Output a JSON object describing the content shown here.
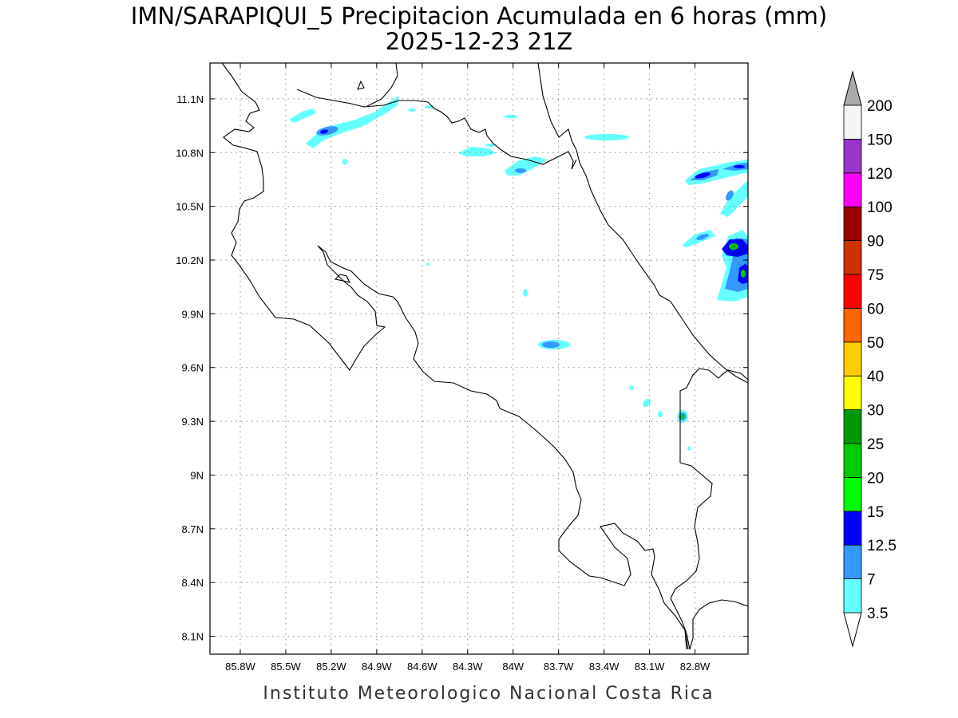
{
  "title": {
    "line1": "IMN/SARAPIQUI_5 Precipitacion Acumulada en 6 horas (mm)",
    "line2": "2025-12-23 21Z"
  },
  "footer": "Instituto Meteorologico Nacional Costa Rica",
  "axes": {
    "x_labels": [
      "85.8W",
      "85.5W",
      "85.2W",
      "84.9W",
      "84.6W",
      "84.3W",
      "84W",
      "83.7W",
      "83.4W",
      "83.1W",
      "82.8W"
    ],
    "y_labels": [
      "11.1N",
      "10.8N",
      "10.5N",
      "10.2N",
      "9.9N",
      "9.6N",
      "9.3N",
      "9N",
      "8.7N",
      "8.4N",
      "8.1N"
    ],
    "lon_ticks": [
      -85.8,
      -85.5,
      -85.2,
      -84.9,
      -84.6,
      -84.3,
      -84.0,
      -83.7,
      -83.4,
      -83.1,
      -82.8
    ],
    "lat_ticks": [
      11.1,
      10.8,
      10.5,
      10.2,
      9.9,
      9.6,
      9.3,
      9.0,
      8.7,
      8.4,
      8.1
    ],
    "lon_range": [
      -86.0,
      -82.45
    ],
    "lat_range": [
      8.0,
      11.3
    ],
    "grid": true
  },
  "colorbar": {
    "labels": [
      "3.5",
      "7",
      "12.5",
      "15",
      "20",
      "25",
      "30",
      "40",
      "50",
      "60",
      "75",
      "90",
      "100",
      "120",
      "150",
      "200"
    ],
    "colors": [
      "#66ffff",
      "#3399ff",
      "#0000ff",
      "#00ff00",
      "#00cc00",
      "#009900",
      "#ffff00",
      "#ffcc00",
      "#ff6600",
      "#ff0000",
      "#cc3300",
      "#990000",
      "#ff00ff",
      "#9933cc",
      "#f5f5f5",
      "#aaaaaa"
    ]
  },
  "chart_data": {
    "type": "heatmap",
    "variable": "Precipitacion Acumulada en 6 horas (mm)",
    "levels": [
      3.5,
      7,
      12.5,
      15,
      20,
      25,
      30,
      40,
      50,
      60,
      75,
      90,
      100,
      120,
      150,
      200
    ],
    "features": [
      {
        "lon": -85.1,
        "lat": 10.92,
        "value": 7
      },
      {
        "lon": -84.82,
        "lat": 11.02,
        "value": 3.5
      },
      {
        "lon": -85.4,
        "lat": 11.0,
        "value": 3.5
      },
      {
        "lon": -84.0,
        "lat": 10.72,
        "value": 7
      },
      {
        "lon": -84.25,
        "lat": 10.83,
        "value": 3.5
      },
      {
        "lon": -83.5,
        "lat": 10.89,
        "value": 3.5
      },
      {
        "lon": -82.65,
        "lat": 10.68,
        "value": 12.5
      },
      {
        "lon": -82.6,
        "lat": 10.29,
        "value": 20
      },
      {
        "lon": -82.53,
        "lat": 10.12,
        "value": 20
      },
      {
        "lon": -82.75,
        "lat": 10.33,
        "value": 7
      },
      {
        "lon": -83.7,
        "lat": 9.73,
        "value": 7
      },
      {
        "lon": -82.94,
        "lat": 9.32,
        "value": 25
      },
      {
        "lon": -83.97,
        "lat": 10.02,
        "value": 3.5
      }
    ]
  }
}
